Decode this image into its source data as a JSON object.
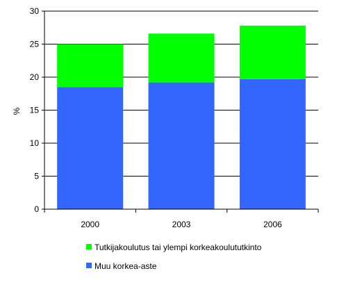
{
  "chart_data": {
    "type": "bar",
    "stacked": true,
    "categories": [
      "2000",
      "2003",
      "2006"
    ],
    "series": [
      {
        "name": "Muu korkea-aste",
        "values": [
          18.5,
          19.2,
          19.7
        ],
        "color": "#3366ff"
      },
      {
        "name": "Tutkijakoulutus tai ylempi korkeakoulututkinto",
        "values": [
          6.5,
          7.4,
          8.1
        ],
        "color": "#00ff00"
      }
    ],
    "ylabel": "%",
    "ylim": [
      0,
      30
    ],
    "yticks": [
      "0",
      "5",
      "10",
      "15",
      "20",
      "25",
      "30"
    ],
    "grid": true,
    "legend_position": "bottom"
  }
}
